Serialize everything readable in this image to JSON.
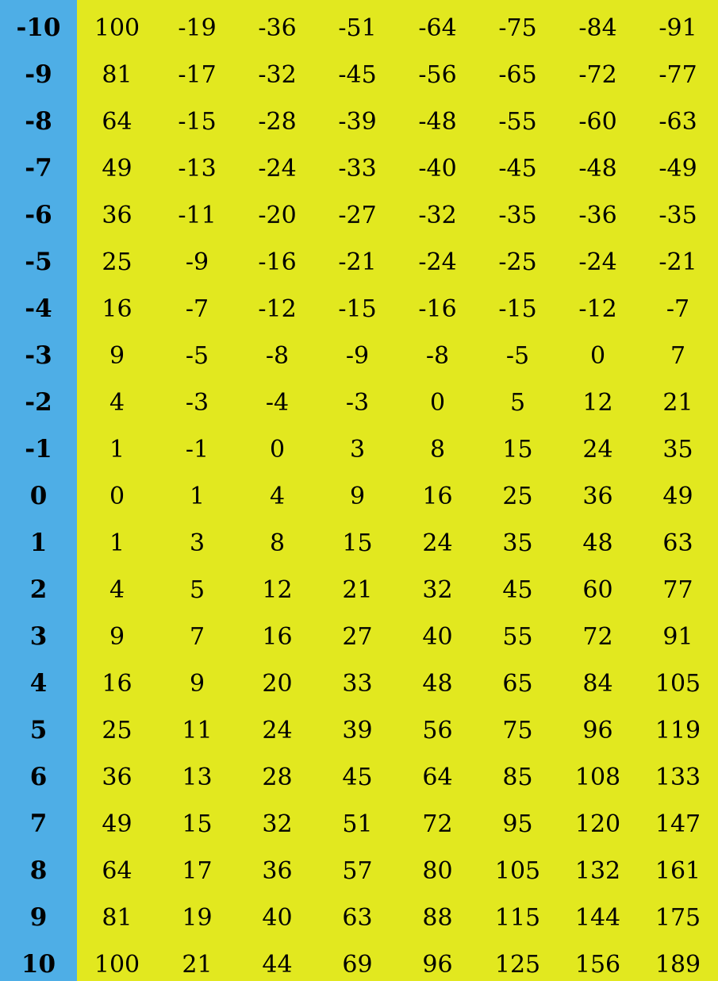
{
  "chart_data": {
    "type": "table",
    "colors": {
      "header_column_background": "#4eaee6",
      "body_background": "#e2e81f",
      "text": "#000000"
    },
    "rows": [
      {
        "label": "-10",
        "values": [
          "100",
          "-19",
          "-36",
          "-51",
          "-64",
          "-75",
          "-84",
          "-91"
        ]
      },
      {
        "label": "-9",
        "values": [
          "81",
          "-17",
          "-32",
          "-45",
          "-56",
          "-65",
          "-72",
          "-77"
        ]
      },
      {
        "label": "-8",
        "values": [
          "64",
          "-15",
          "-28",
          "-39",
          "-48",
          "-55",
          "-60",
          "-63"
        ]
      },
      {
        "label": "-7",
        "values": [
          "49",
          "-13",
          "-24",
          "-33",
          "-40",
          "-45",
          "-48",
          "-49"
        ]
      },
      {
        "label": "-6",
        "values": [
          "36",
          "-11",
          "-20",
          "-27",
          "-32",
          "-35",
          "-36",
          "-35"
        ]
      },
      {
        "label": "-5",
        "values": [
          "25",
          "-9",
          "-16",
          "-21",
          "-24",
          "-25",
          "-24",
          "-21"
        ]
      },
      {
        "label": "-4",
        "values": [
          "16",
          "-7",
          "-12",
          "-15",
          "-16",
          "-15",
          "-12",
          "-7"
        ]
      },
      {
        "label": "-3",
        "values": [
          "9",
          "-5",
          "-8",
          "-9",
          "-8",
          "-5",
          "0",
          "7"
        ]
      },
      {
        "label": "-2",
        "values": [
          "4",
          "-3",
          "-4",
          "-3",
          "0",
          "5",
          "12",
          "21"
        ]
      },
      {
        "label": "-1",
        "values": [
          "1",
          "-1",
          "0",
          "3",
          "8",
          "15",
          "24",
          "35"
        ]
      },
      {
        "label": "0",
        "values": [
          "0",
          "1",
          "4",
          "9",
          "16",
          "25",
          "36",
          "49"
        ]
      },
      {
        "label": "1",
        "values": [
          "1",
          "3",
          "8",
          "15",
          "24",
          "35",
          "48",
          "63"
        ]
      },
      {
        "label": "2",
        "values": [
          "4",
          "5",
          "12",
          "21",
          "32",
          "45",
          "60",
          "77"
        ]
      },
      {
        "label": "3",
        "values": [
          "9",
          "7",
          "16",
          "27",
          "40",
          "55",
          "72",
          "91"
        ]
      },
      {
        "label": "4",
        "values": [
          "16",
          "9",
          "20",
          "33",
          "48",
          "65",
          "84",
          "105"
        ]
      },
      {
        "label": "5",
        "values": [
          "25",
          "11",
          "24",
          "39",
          "56",
          "75",
          "96",
          "119"
        ]
      },
      {
        "label": "6",
        "values": [
          "36",
          "13",
          "28",
          "45",
          "64",
          "85",
          "108",
          "133"
        ]
      },
      {
        "label": "7",
        "values": [
          "49",
          "15",
          "32",
          "51",
          "72",
          "95",
          "120",
          "147"
        ]
      },
      {
        "label": "8",
        "values": [
          "64",
          "17",
          "36",
          "57",
          "80",
          "105",
          "132",
          "161"
        ]
      },
      {
        "label": "9",
        "values": [
          "81",
          "19",
          "40",
          "63",
          "88",
          "115",
          "144",
          "175"
        ]
      },
      {
        "label": "10",
        "values": [
          "100",
          "21",
          "44",
          "69",
          "96",
          "125",
          "156",
          "189"
        ]
      }
    ]
  }
}
